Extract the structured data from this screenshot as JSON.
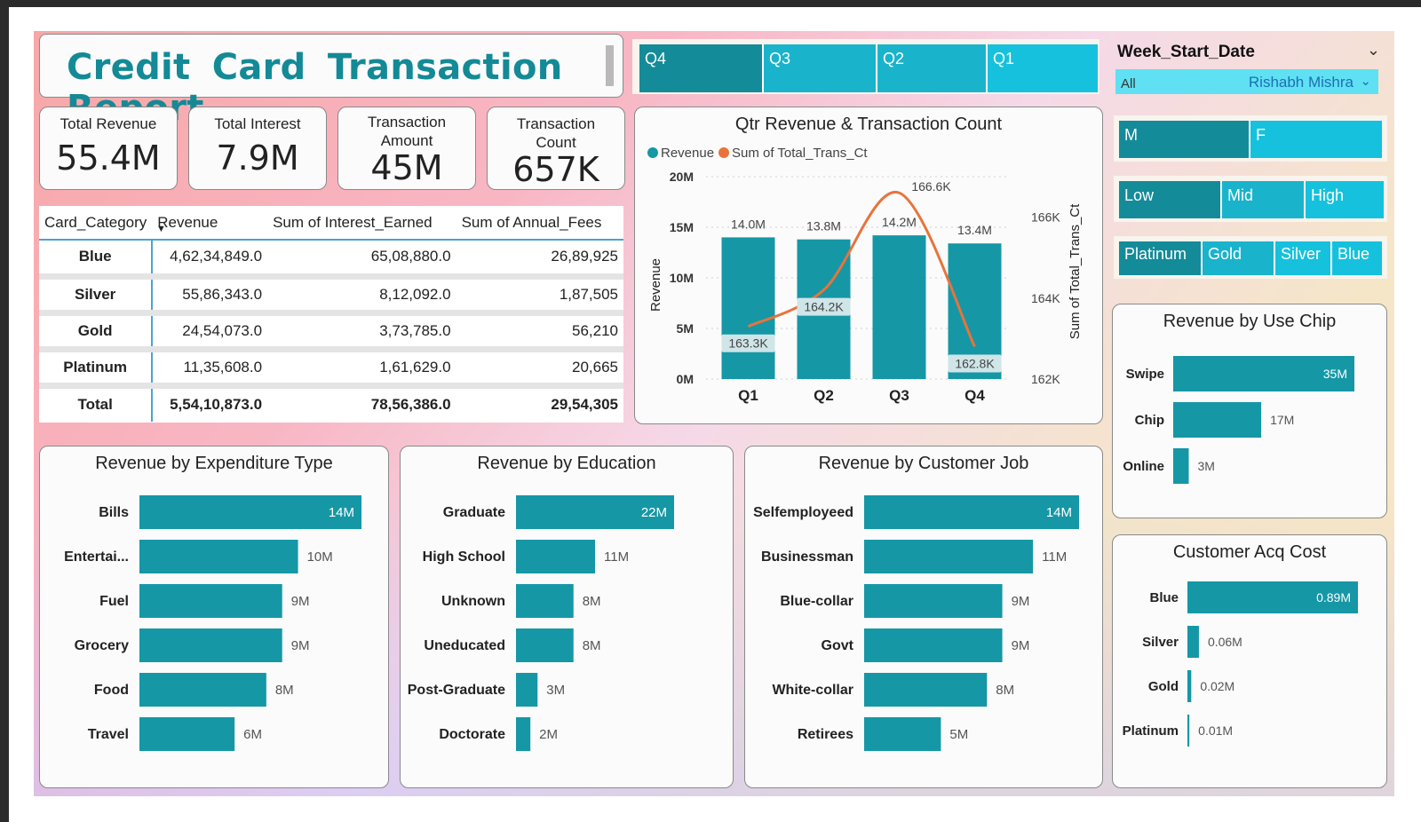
{
  "report_title": "Credit Card Transaction Report",
  "kpis": [
    {
      "label": "Total Revenue",
      "value": "55.4M"
    },
    {
      "label": "Total Interest",
      "value": "7.9M"
    },
    {
      "label": "Transaction Amount",
      "value": "45M"
    },
    {
      "label": "Transaction Count",
      "value": "657K"
    }
  ],
  "matrix": {
    "headers": [
      "Card_Category",
      "Revenue",
      "Sum of Interest_Earned",
      "Sum of Annual_Fees"
    ],
    "rows": [
      [
        "Blue",
        "4,62,34,849.0",
        "65,08,880.0",
        "26,89,925"
      ],
      [
        "Silver",
        "55,86,343.0",
        "8,12,092.0",
        "1,87,505"
      ],
      [
        "Gold",
        "24,54,073.0",
        "3,73,785.0",
        "56,210"
      ],
      [
        "Platinum",
        "11,35,608.0",
        "1,61,629.0",
        "20,665"
      ],
      [
        "Total",
        "5,54,10,873.0",
        "78,56,386.0",
        "29,54,305"
      ]
    ]
  },
  "quarter_slicer": [
    "Q4",
    "Q3",
    "Q2",
    "Q1"
  ],
  "week_slicer": {
    "label": "Week_Start_Date",
    "value": "All",
    "user": "Rishabh Mishra"
  },
  "gender_slicer": [
    "M",
    "F"
  ],
  "income_slicer": [
    "Low",
    "Mid",
    "High"
  ],
  "card_slicer": [
    "Platinum",
    "Gold",
    "Silver",
    "Blue"
  ],
  "colors": {
    "bar": "#1597a6",
    "line": "#e8743b",
    "accent": "#138a96"
  },
  "chart_data": [
    {
      "type": "bar",
      "title": "Qtr Revenue & Transaction Count",
      "categories": [
        "Q1",
        "Q2",
        "Q3",
        "Q4"
      ],
      "series": [
        {
          "name": "Revenue",
          "values": [
            14.0,
            13.8,
            14.2,
            13.4
          ],
          "labels": [
            "14.0M",
            "13.8M",
            "14.2M",
            "13.4M"
          ]
        },
        {
          "name": "Sum of Total_Trans_Ct",
          "type": "line",
          "values": [
            163.3,
            164.2,
            166.6,
            162.8
          ],
          "labels": [
            "163.3K",
            "164.2K",
            "166.6K",
            "162.8K"
          ]
        }
      ],
      "ylabel": "Revenue",
      "y2label": "Sum of Total_Trans_Ct",
      "ylim": [
        0,
        20
      ],
      "yticks": [
        "0M",
        "5M",
        "10M",
        "15M",
        "20M"
      ],
      "y2lim": [
        162,
        167
      ],
      "y2ticks": [
        "162K",
        "164K",
        "166K"
      ],
      "legend": "top-left"
    },
    {
      "type": "bar",
      "orientation": "horizontal",
      "title": "Revenue by Use Chip",
      "categories": [
        "Swipe",
        "Chip",
        "Online"
      ],
      "values": [
        35,
        17,
        3
      ],
      "labels": [
        "35M",
        "17M",
        "3M"
      ],
      "max": 35
    },
    {
      "type": "bar",
      "orientation": "horizontal",
      "title": "Customer Acq Cost",
      "categories": [
        "Blue",
        "Silver",
        "Gold",
        "Platinum"
      ],
      "values": [
        0.89,
        0.06,
        0.02,
        0.01
      ],
      "labels": [
        "0.89M",
        "0.06M",
        "0.02M",
        "0.01M"
      ],
      "max": 0.89
    },
    {
      "type": "bar",
      "orientation": "horizontal",
      "title": "Revenue by Expenditure Type",
      "categories": [
        "Bills",
        "Entertai...",
        "Fuel",
        "Grocery",
        "Food",
        "Travel"
      ],
      "values": [
        14,
        10,
        9,
        9,
        8,
        6
      ],
      "labels": [
        "14M",
        "10M",
        "9M",
        "9M",
        "8M",
        "6M"
      ],
      "max": 14
    },
    {
      "type": "bar",
      "orientation": "horizontal",
      "title": "Revenue by Education",
      "categories": [
        "Graduate",
        "High School",
        "Unknown",
        "Uneducated",
        "Post-Graduate",
        "Doctorate"
      ],
      "values": [
        22,
        11,
        8,
        8,
        3,
        2
      ],
      "labels": [
        "22M",
        "11M",
        "8M",
        "8M",
        "3M",
        "2M"
      ],
      "max": 22
    },
    {
      "type": "bar",
      "orientation": "horizontal",
      "title": "Revenue by Customer Job",
      "categories": [
        "Selfemployeed",
        "Businessman",
        "Blue-collar",
        "Govt",
        "White-collar",
        "Retirees"
      ],
      "values": [
        14,
        11,
        9,
        9,
        8,
        5
      ],
      "labels": [
        "14M",
        "11M",
        "9M",
        "9M",
        "8M",
        "5M"
      ],
      "max": 14
    }
  ]
}
